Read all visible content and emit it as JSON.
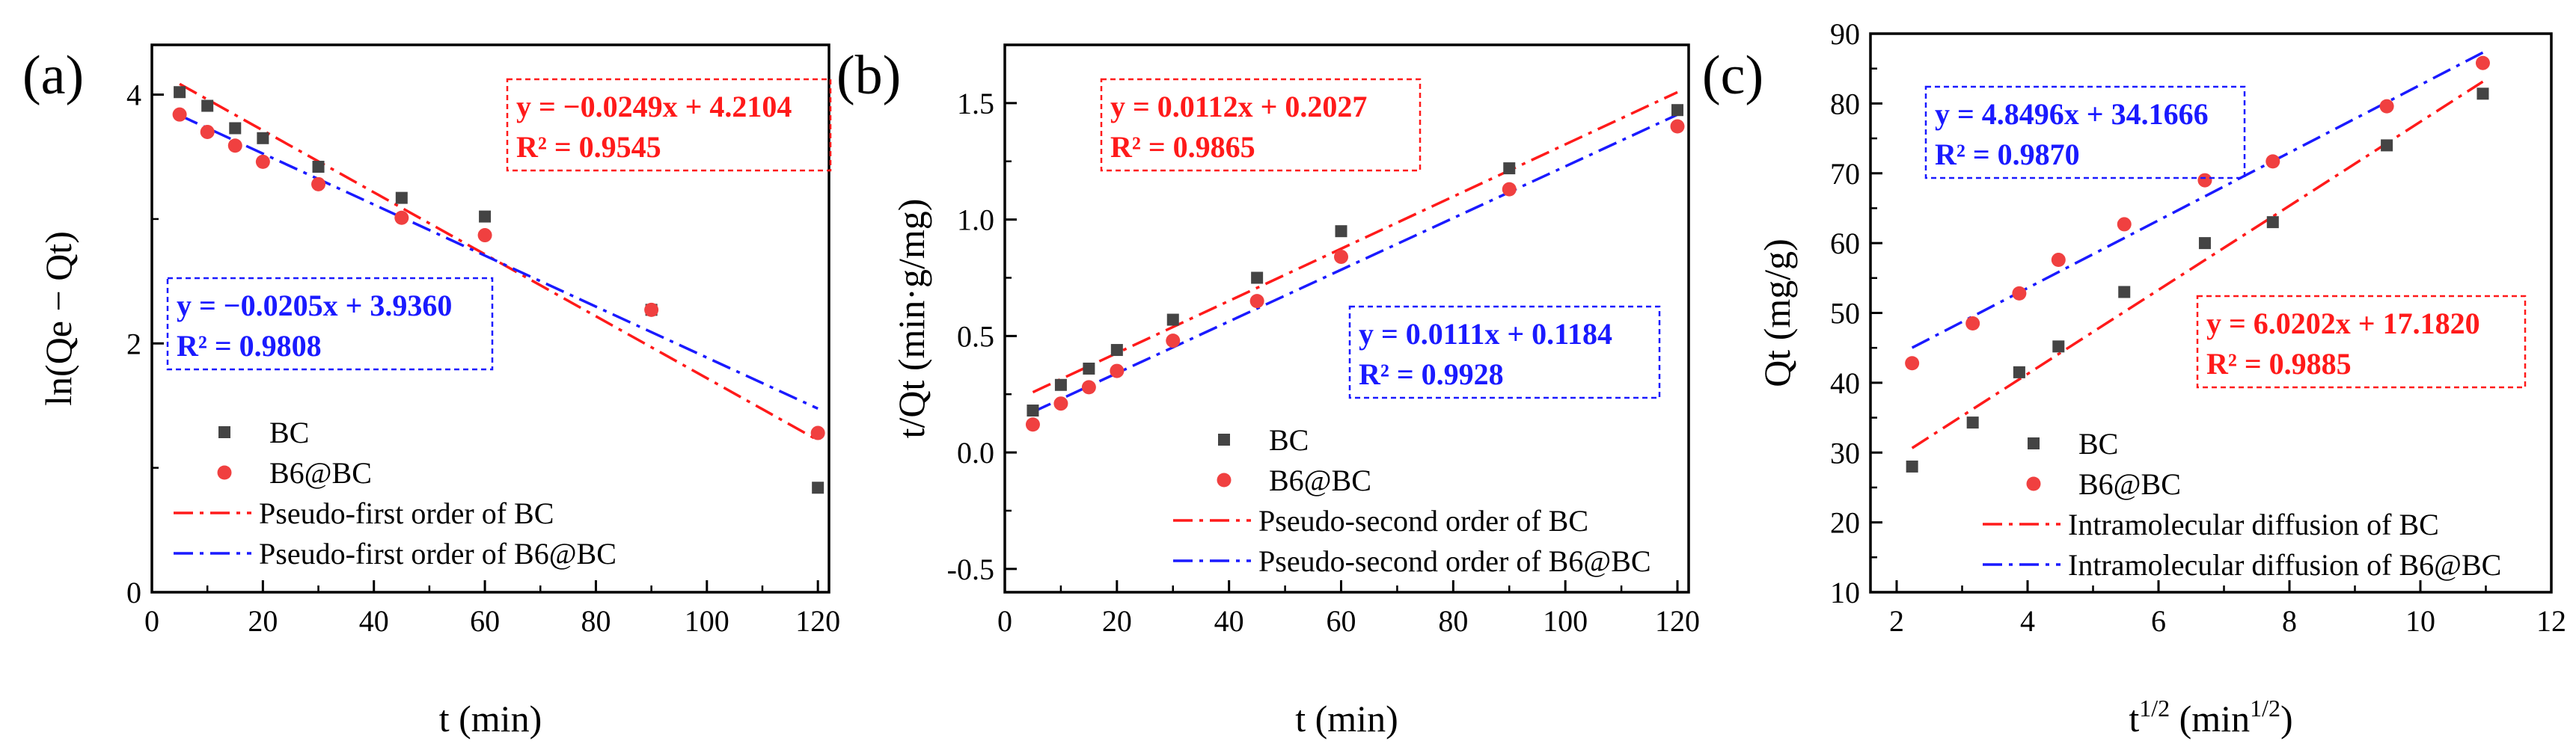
{
  "colors": {
    "bc": "#444444",
    "b6": "#f04040",
    "fit_bc": "#ff1a1a",
    "fit_b6": "#1a1aff",
    "axis": "#000000"
  },
  "chart_data": [
    {
      "panel": "(a)",
      "type": "scatter",
      "xlabel": "t (min)",
      "ylabel": "ln(Qe − Qt)",
      "xlim": [
        0,
        122
      ],
      "ylim": [
        0,
        4.4
      ],
      "xticks": [
        0,
        20,
        40,
        60,
        80,
        100,
        120
      ],
      "yticks": [
        0,
        2,
        4
      ],
      "minor_x": 10,
      "minor_y": 1,
      "x": [
        5,
        10,
        15,
        20,
        30,
        45,
        60,
        90,
        120
      ],
      "series": [
        {
          "name": "BC",
          "kind": "points",
          "marker": "square",
          "color_key": "bc",
          "values": [
            4.02,
            3.91,
            3.73,
            3.65,
            3.42,
            3.17,
            3.02,
            2.27,
            0.84
          ]
        },
        {
          "name": "B6@BC",
          "kind": "points",
          "marker": "circle",
          "color_key": "b6",
          "values": [
            3.84,
            3.7,
            3.59,
            3.46,
            3.28,
            3.01,
            2.87,
            2.27,
            1.28
          ]
        },
        {
          "name": "Pseudo-first order of BC",
          "kind": "fit",
          "color_key": "fit_bc",
          "slope": -0.0249,
          "intercept": 4.2104,
          "x_range": [
            5,
            120
          ]
        },
        {
          "name": "Pseudo-first order of B6@BC",
          "kind": "fit",
          "color_key": "fit_b6",
          "slope": -0.0205,
          "intercept": 3.936,
          "x_range": [
            5,
            120
          ]
        }
      ],
      "annotations": [
        {
          "color_key": "fit_bc",
          "eq": "y = −0.0249x + 4.2104",
          "r2": "R² = 0.9545"
        },
        {
          "color_key": "fit_b6",
          "eq": "y = −0.0205x + 3.9360",
          "r2": "R² = 0.9808"
        }
      ]
    },
    {
      "panel": "(b)",
      "type": "scatter",
      "xlabel": "t (min)",
      "ylabel": "t/Qt (min·g/mg)",
      "xlim": [
        0,
        122
      ],
      "ylim": [
        -0.6,
        1.75
      ],
      "xticks": [
        0,
        20,
        40,
        60,
        80,
        100,
        120
      ],
      "yticks": [
        -0.5,
        0.0,
        0.5,
        1.0,
        1.5
      ],
      "minor_x": 10,
      "minor_y": 0.25,
      "x": [
        5,
        10,
        15,
        20,
        30,
        45,
        60,
        90,
        120
      ],
      "series": [
        {
          "name": "BC",
          "kind": "points",
          "marker": "square",
          "color_key": "bc",
          "values": [
            0.18,
            0.29,
            0.36,
            0.44,
            0.57,
            0.75,
            0.95,
            1.22,
            1.47
          ]
        },
        {
          "name": "B6@BC",
          "kind": "points",
          "marker": "circle",
          "color_key": "b6",
          "values": [
            0.12,
            0.21,
            0.28,
            0.35,
            0.48,
            0.65,
            0.84,
            1.13,
            1.4
          ]
        },
        {
          "name": "Pseudo-second order of BC",
          "kind": "fit",
          "color_key": "fit_bc",
          "slope": 0.0112,
          "intercept": 0.2027,
          "x_range": [
            5,
            120
          ]
        },
        {
          "name": "Pseudo-second order of B6@BC",
          "kind": "fit",
          "color_key": "fit_b6",
          "slope": 0.0111,
          "intercept": 0.1184,
          "x_range": [
            5,
            120
          ]
        }
      ],
      "annotations": [
        {
          "color_key": "fit_bc",
          "eq": "y = 0.0112x + 0.2027",
          "r2": "R² = 0.9865"
        },
        {
          "color_key": "fit_b6",
          "eq": "y = 0.0111x + 0.1184",
          "r2": "R² = 0.9928"
        }
      ]
    },
    {
      "panel": "(c)",
      "type": "scatter",
      "xlabel": "t",
      "xlabel_sup": "1/2",
      "xlabel_unit": " (min",
      "xlabel_unit_sup": "1/2",
      "xlabel_close": ")",
      "ylabel": "Qt (mg/g)",
      "xlim": [
        1.6,
        12
      ],
      "ylim": [
        10,
        90
      ],
      "xticks": [
        2,
        4,
        6,
        8,
        10,
        12
      ],
      "yticks": [
        10,
        20,
        30,
        40,
        50,
        60,
        70,
        80,
        90
      ],
      "minor_x": 1,
      "minor_y": 5,
      "x": [
        2.236,
        3.162,
        3.873,
        4.472,
        5.477,
        6.708,
        7.746,
        9.487,
        10.954
      ],
      "series": [
        {
          "name": "BC",
          "kind": "points",
          "marker": "square",
          "color_key": "bc",
          "values": [
            28.0,
            34.3,
            41.5,
            45.2,
            53.0,
            60.0,
            63.0,
            74.0,
            81.4
          ]
        },
        {
          "name": "B6@BC",
          "kind": "points",
          "marker": "circle",
          "color_key": "b6",
          "values": [
            42.8,
            48.5,
            52.8,
            57.6,
            62.7,
            69.0,
            71.7,
            79.6,
            85.8
          ]
        },
        {
          "name": "Intramolecular diffusion of BC",
          "kind": "fit",
          "color_key": "fit_bc",
          "slope": 6.0202,
          "intercept": 17.182,
          "x_range": [
            2.236,
            10.954
          ]
        },
        {
          "name": "Intramolecular diffusion of B6@BC",
          "kind": "fit",
          "color_key": "fit_b6",
          "slope": 4.8496,
          "intercept": 34.1666,
          "x_range": [
            2.236,
            10.954
          ]
        }
      ],
      "annotations": [
        {
          "color_key": "fit_b6",
          "eq": "y = 4.8496x + 34.1666",
          "r2": "R² = 0.9870"
        },
        {
          "color_key": "fit_bc",
          "eq": "y = 6.0202x + 17.1820",
          "r2": "R² = 0.9885"
        }
      ]
    }
  ]
}
